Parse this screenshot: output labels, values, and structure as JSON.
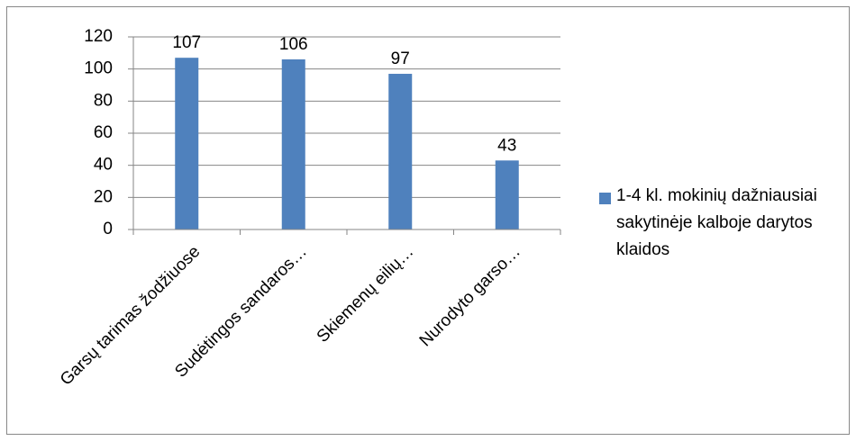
{
  "chart_data": {
    "type": "bar",
    "categories": [
      "Garsų tarimas žodžiuose",
      "Sudėtingos sandaros…",
      "Skiemenų eilių…",
      "Nurodyto garso…"
    ],
    "series": [
      {
        "name": "1-4 kl. mokinių dažniausiai sakytinėje kalboje darytos klaidos",
        "color": "#4f81bd",
        "values": [
          107,
          106,
          97,
          43
        ]
      }
    ],
    "ylim": [
      0,
      120
    ],
    "yticks": [
      0,
      20,
      40,
      60,
      80,
      100,
      120
    ],
    "grid": true,
    "legend": "right"
  }
}
